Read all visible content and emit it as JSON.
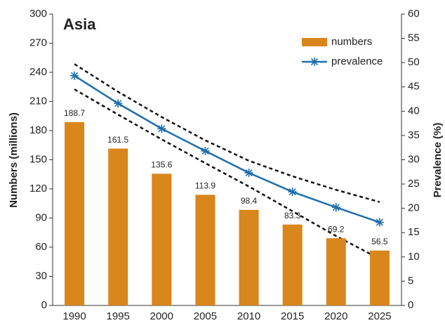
{
  "chart_data": {
    "type": "bar_line",
    "title": "Asia",
    "ylabel": "Numbers (millions)",
    "y2label": "Prevalence (%)",
    "categories": [
      "1990",
      "1995",
      "2000",
      "2005",
      "2010",
      "2015",
      "2020",
      "2025"
    ],
    "series": [
      {
        "name": "numbers",
        "type": "bar",
        "color": "#d9861c",
        "values": [
          188.7,
          161.5,
          135.6,
          113.9,
          98.4,
          83.3,
          69.2,
          56.5
        ]
      },
      {
        "name": "prevalence",
        "type": "line",
        "axis": "y2",
        "color": "#1f6fad",
        "values": [
          47.3,
          41.6,
          36.4,
          31.8,
          27.3,
          23.4,
          20.2,
          17.1
        ]
      }
    ],
    "bounds": {
      "color": "#111",
      "upper": [
        49.7,
        44.0,
        38.8,
        34.0,
        29.8,
        26.6,
        23.8,
        21.3
      ],
      "lower": [
        44.5,
        39.3,
        34.2,
        29.3,
        24.5,
        19.4,
        14.3,
        9.6
      ]
    },
    "ylim": [
      0,
      300
    ],
    "yticks": [
      0,
      30,
      60,
      90,
      120,
      150,
      180,
      210,
      240,
      270,
      300
    ],
    "y2lim": [
      0,
      60
    ],
    "y2ticks": [
      0,
      5,
      10,
      15,
      20,
      25,
      30,
      35,
      40,
      45,
      50,
      55,
      60
    ],
    "legend": "upper right"
  }
}
